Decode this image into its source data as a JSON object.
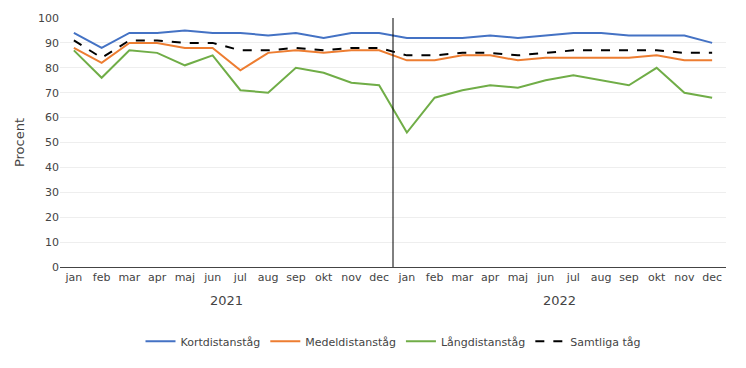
{
  "chart_data": {
    "type": "line",
    "ylabel": "Procent",
    "categories": [
      "jan",
      "feb",
      "mar",
      "apr",
      "maj",
      "jun",
      "jul",
      "aug",
      "sep",
      "okt",
      "nov",
      "dec",
      "jan",
      "feb",
      "mar",
      "apr",
      "maj",
      "jun",
      "jul",
      "aug",
      "sep",
      "okt",
      "nov",
      "dec"
    ],
    "annotations": [
      "2021",
      "2022"
    ],
    "series": [
      {
        "name": "Kortdistanståg",
        "color": "#4472C4",
        "line_style": "solid",
        "values": [
          94,
          88,
          94,
          94,
          95,
          94,
          94,
          93,
          94,
          92,
          94,
          94,
          92,
          92,
          92,
          93,
          92,
          93,
          94,
          94,
          93,
          93,
          93,
          90
        ]
      },
      {
        "name": "Medeldistanståg",
        "color": "#ED7D31",
        "line_style": "solid",
        "values": [
          88,
          82,
          90,
          90,
          88,
          88,
          79,
          86,
          87,
          86,
          87,
          87,
          83,
          83,
          85,
          85,
          83,
          84,
          84,
          84,
          84,
          85,
          83,
          83
        ]
      },
      {
        "name": "Långdistanståg",
        "color": "#70AD47",
        "line_style": "solid",
        "values": [
          87,
          76,
          87,
          86,
          81,
          85,
          71,
          70,
          80,
          78,
          74,
          73,
          54,
          68,
          71,
          73,
          72,
          75,
          77,
          75,
          73,
          80,
          70,
          68
        ]
      },
      {
        "name": "Samtliga tåg",
        "color": "#000000",
        "line_style": "dashed",
        "values": [
          91,
          84,
          91,
          91,
          90,
          90,
          87,
          87,
          88,
          87,
          88,
          88,
          85,
          85,
          86,
          86,
          85,
          86,
          87,
          87,
          87,
          87,
          86,
          86
        ]
      }
    ],
    "ylim": [
      0,
      100
    ],
    "yticks": [
      0,
      10,
      20,
      30,
      40,
      50,
      60,
      70,
      80,
      90,
      100
    ],
    "grid": true,
    "legend": "bottom"
  }
}
